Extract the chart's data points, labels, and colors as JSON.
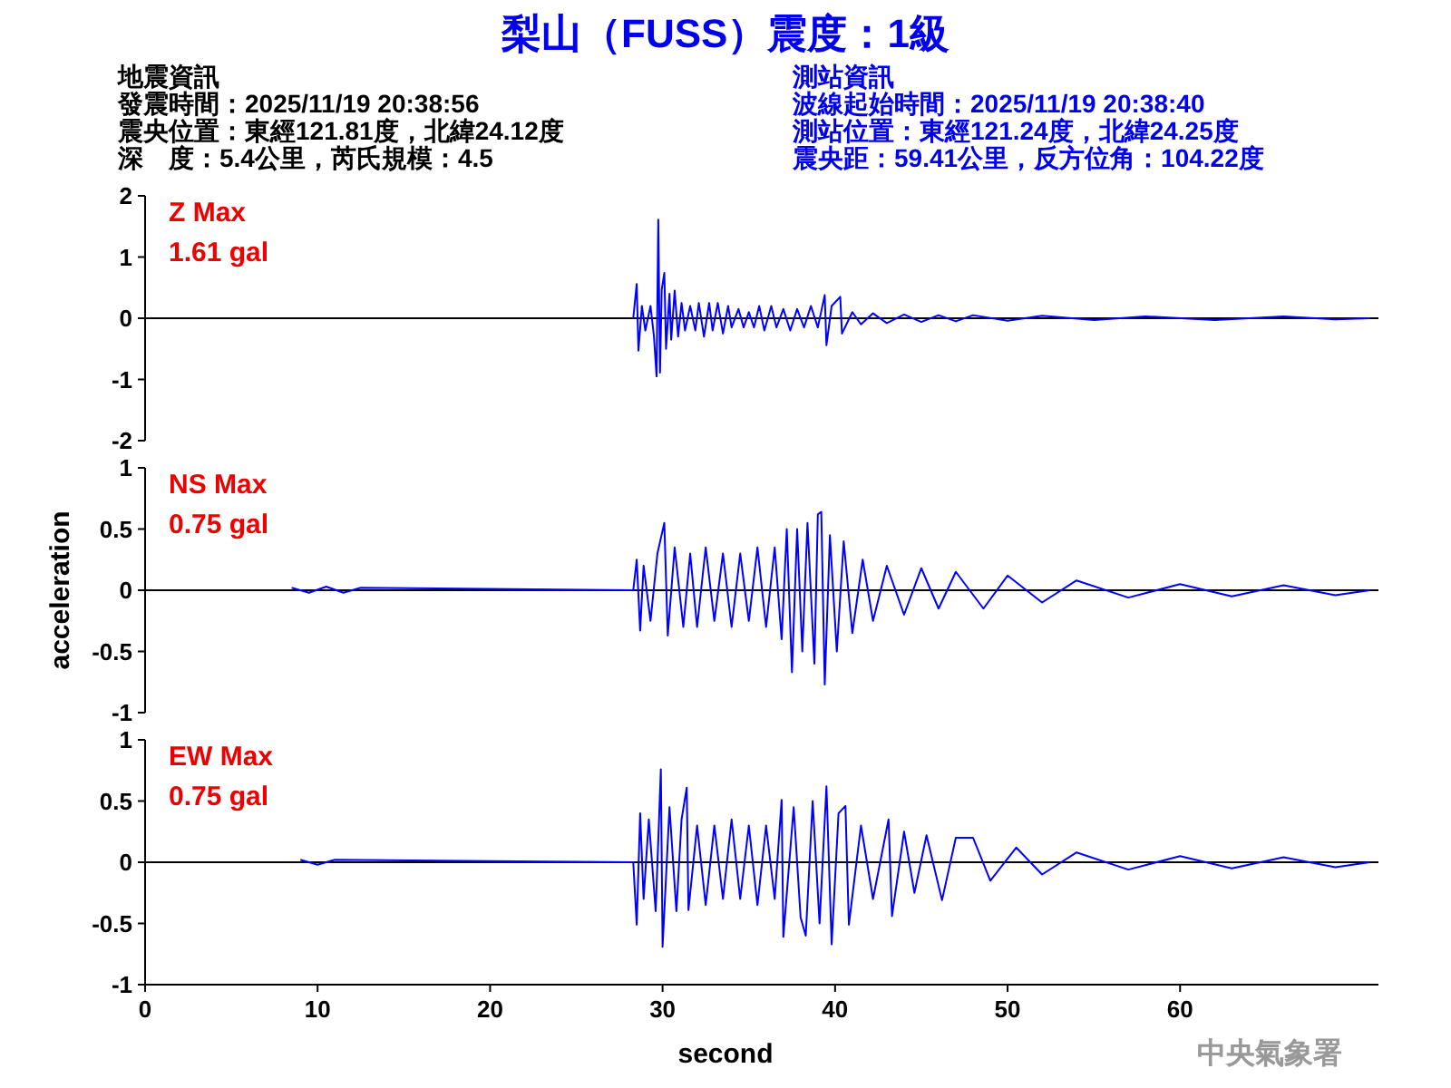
{
  "chart_data": [
    {
      "type": "line",
      "title": "梨山（FUSS）震度：1級",
      "annotations": [
        "地震資訊",
        "發震時間：2025/11/19 20:38:56",
        "震央位置：東經121.81度，北緯24.12度",
        "深　度：5.4公里，芮氏規模：4.5",
        "測站資訊",
        "波線起始時間：2025/11/19 20:38:40",
        "測站位置：東經121.24度，北緯24.25度",
        "震央距：59.41公里，反方位角：104.22度",
        "Z Max",
        "1.61 gal"
      ],
      "xlim": [
        0,
        71.5
      ],
      "ylim": [
        -2,
        2
      ],
      "yticks": [
        -2,
        -1,
        0,
        1,
        2
      ],
      "tick_labels": "y",
      "grid": false,
      "ref_lines": [
        {
          "axis": "y",
          "value": 0,
          "color": "#000000"
        }
      ],
      "series": [
        {
          "color": "#0000ff",
          "x": [
            28.3,
            28.5,
            28.6,
            28.8,
            29.0,
            29.3,
            29.5,
            29.65,
            29.75,
            29.85,
            29.95,
            30.1,
            30.2,
            30.4,
            30.5,
            30.7,
            30.9,
            31.1,
            31.3,
            31.6,
            31.9,
            32.1,
            32.4,
            32.7,
            32.9,
            33.2,
            33.5,
            33.8,
            34.0,
            34.4,
            34.7,
            35.0,
            35.3,
            35.6,
            35.9,
            36.3,
            36.6,
            37.0,
            37.4,
            37.8,
            38.2,
            38.6,
            39.0,
            39.4,
            39.5,
            39.8,
            40.3,
            40.4,
            41.0,
            41.5,
            42.2,
            43.0,
            44.0,
            45.0,
            46.0,
            47.0,
            48.0,
            50.0,
            52.0,
            55.0,
            58.0,
            62.0,
            66.0,
            69.0,
            71.0
          ],
          "values": [
            0,
            0.56,
            -0.53,
            0.2,
            -0.2,
            0.2,
            -0.3,
            -0.95,
            1.61,
            -0.89,
            0.47,
            0.74,
            -0.5,
            0.4,
            -0.35,
            0.45,
            -0.3,
            0.25,
            -0.2,
            0.2,
            -0.2,
            0.25,
            -0.3,
            0.25,
            -0.2,
            0.25,
            -0.25,
            0.2,
            -0.15,
            0.15,
            -0.15,
            0.1,
            -0.15,
            0.2,
            -0.2,
            0.2,
            -0.15,
            0.15,
            -0.2,
            0.15,
            -0.15,
            0.2,
            -0.15,
            0.38,
            -0.44,
            0.2,
            0.35,
            -0.25,
            0.1,
            -0.1,
            0.08,
            -0.08,
            0.06,
            -0.06,
            0.05,
            -0.05,
            0.05,
            -0.04,
            0.04,
            -0.03,
            0.03,
            -0.03,
            0.03,
            -0.02,
            0
          ]
        }
      ]
    },
    {
      "type": "line",
      "ylabel": "acceleration",
      "annotations": [
        "NS Max",
        "0.75 gal"
      ],
      "xlim": [
        0,
        71.5
      ],
      "ylim": [
        -1,
        1
      ],
      "yticks": [
        -1,
        -0.5,
        0,
        0.5,
        1
      ],
      "tick_labels": "y",
      "grid": false,
      "ref_lines": [
        {
          "axis": "y",
          "value": 0,
          "color": "#000000"
        }
      ],
      "series": [
        {
          "color": "#0000ff",
          "x": [
            8.5,
            9.5,
            10.5,
            11.5,
            12.5,
            28.3,
            28.5,
            28.7,
            28.9,
            29.3,
            29.7,
            30.1,
            30.3,
            30.7,
            31.2,
            31.6,
            32.0,
            32.5,
            33.0,
            33.5,
            34.0,
            34.5,
            35.0,
            35.5,
            36.0,
            36.5,
            36.9,
            37.2,
            37.5,
            37.8,
            38.1,
            38.4,
            38.8,
            39.0,
            39.2,
            39.4,
            39.7,
            40.1,
            40.5,
            41.0,
            41.6,
            42.2,
            43.0,
            44.0,
            45.0,
            46.0,
            47.0,
            48.6,
            50.0,
            52.0,
            54.0,
            57.0,
            60.0,
            63.0,
            66.0,
            69.0,
            71.0
          ],
          "values": [
            0.02,
            -0.02,
            0.03,
            -0.02,
            0.02,
            0,
            0.25,
            -0.33,
            0.2,
            -0.25,
            0.3,
            0.55,
            -0.37,
            0.35,
            -0.3,
            0.3,
            -0.3,
            0.35,
            -0.25,
            0.3,
            -0.3,
            0.3,
            -0.25,
            0.35,
            -0.3,
            0.35,
            -0.4,
            0.5,
            -0.67,
            0.5,
            -0.5,
            0.55,
            -0.6,
            0.62,
            0.64,
            -0.77,
            0.45,
            -0.5,
            0.4,
            -0.35,
            0.25,
            -0.25,
            0.2,
            -0.2,
            0.18,
            -0.15,
            0.15,
            -0.15,
            0.12,
            -0.1,
            0.08,
            -0.06,
            0.05,
            -0.05,
            0.04,
            -0.04,
            0
          ]
        }
      ]
    },
    {
      "type": "line",
      "xlabel": "second",
      "annotations": [
        "EW Max",
        "0.75 gal",
        "中央氣象署"
      ],
      "xlim": [
        0,
        71.5
      ],
      "xticks": [
        0,
        10,
        20,
        30,
        40,
        50,
        60
      ],
      "ylim": [
        -1,
        1
      ],
      "yticks": [
        -1,
        -0.5,
        0,
        0.5,
        1
      ],
      "grid": false,
      "ref_lines": [
        {
          "axis": "y",
          "value": 0,
          "color": "#000000"
        }
      ],
      "series": [
        {
          "color": "#0000ff",
          "x": [
            9.0,
            10.0,
            11.0,
            28.3,
            28.5,
            28.7,
            28.9,
            29.2,
            29.6,
            29.9,
            30.0,
            30.4,
            30.8,
            31.1,
            31.4,
            31.5,
            32.0,
            32.5,
            33.0,
            33.5,
            34.0,
            34.5,
            35.0,
            35.5,
            36.0,
            36.5,
            36.9,
            37.0,
            37.6,
            38.0,
            38.3,
            38.7,
            39.1,
            39.5,
            39.8,
            40.2,
            40.6,
            40.8,
            41.5,
            42.2,
            43.1,
            43.3,
            44.0,
            44.6,
            45.3,
            46.2,
            47.0,
            48.0,
            49.0,
            50.5,
            52.0,
            54.0,
            57.0,
            60.0,
            63.0,
            66.0,
            69.0,
            71.0
          ],
          "values": [
            0.02,
            -0.02,
            0.02,
            0,
            -0.51,
            0.4,
            -0.3,
            0.35,
            -0.4,
            0.76,
            -0.69,
            0.45,
            -0.4,
            0.35,
            0.61,
            -0.39,
            0.3,
            -0.35,
            0.3,
            -0.3,
            0.35,
            -0.3,
            0.3,
            -0.35,
            0.3,
            -0.3,
            0.51,
            -0.61,
            0.45,
            -0.45,
            -0.6,
            0.5,
            -0.5,
            0.62,
            -0.67,
            0.4,
            0.46,
            -0.51,
            0.3,
            -0.3,
            0.35,
            -0.44,
            0.25,
            -0.25,
            0.22,
            -0.31,
            0.2,
            0.2,
            -0.15,
            0.12,
            -0.1,
            0.08,
            -0.06,
            0.05,
            -0.05,
            0.04,
            -0.04,
            0
          ]
        }
      ]
    }
  ]
}
